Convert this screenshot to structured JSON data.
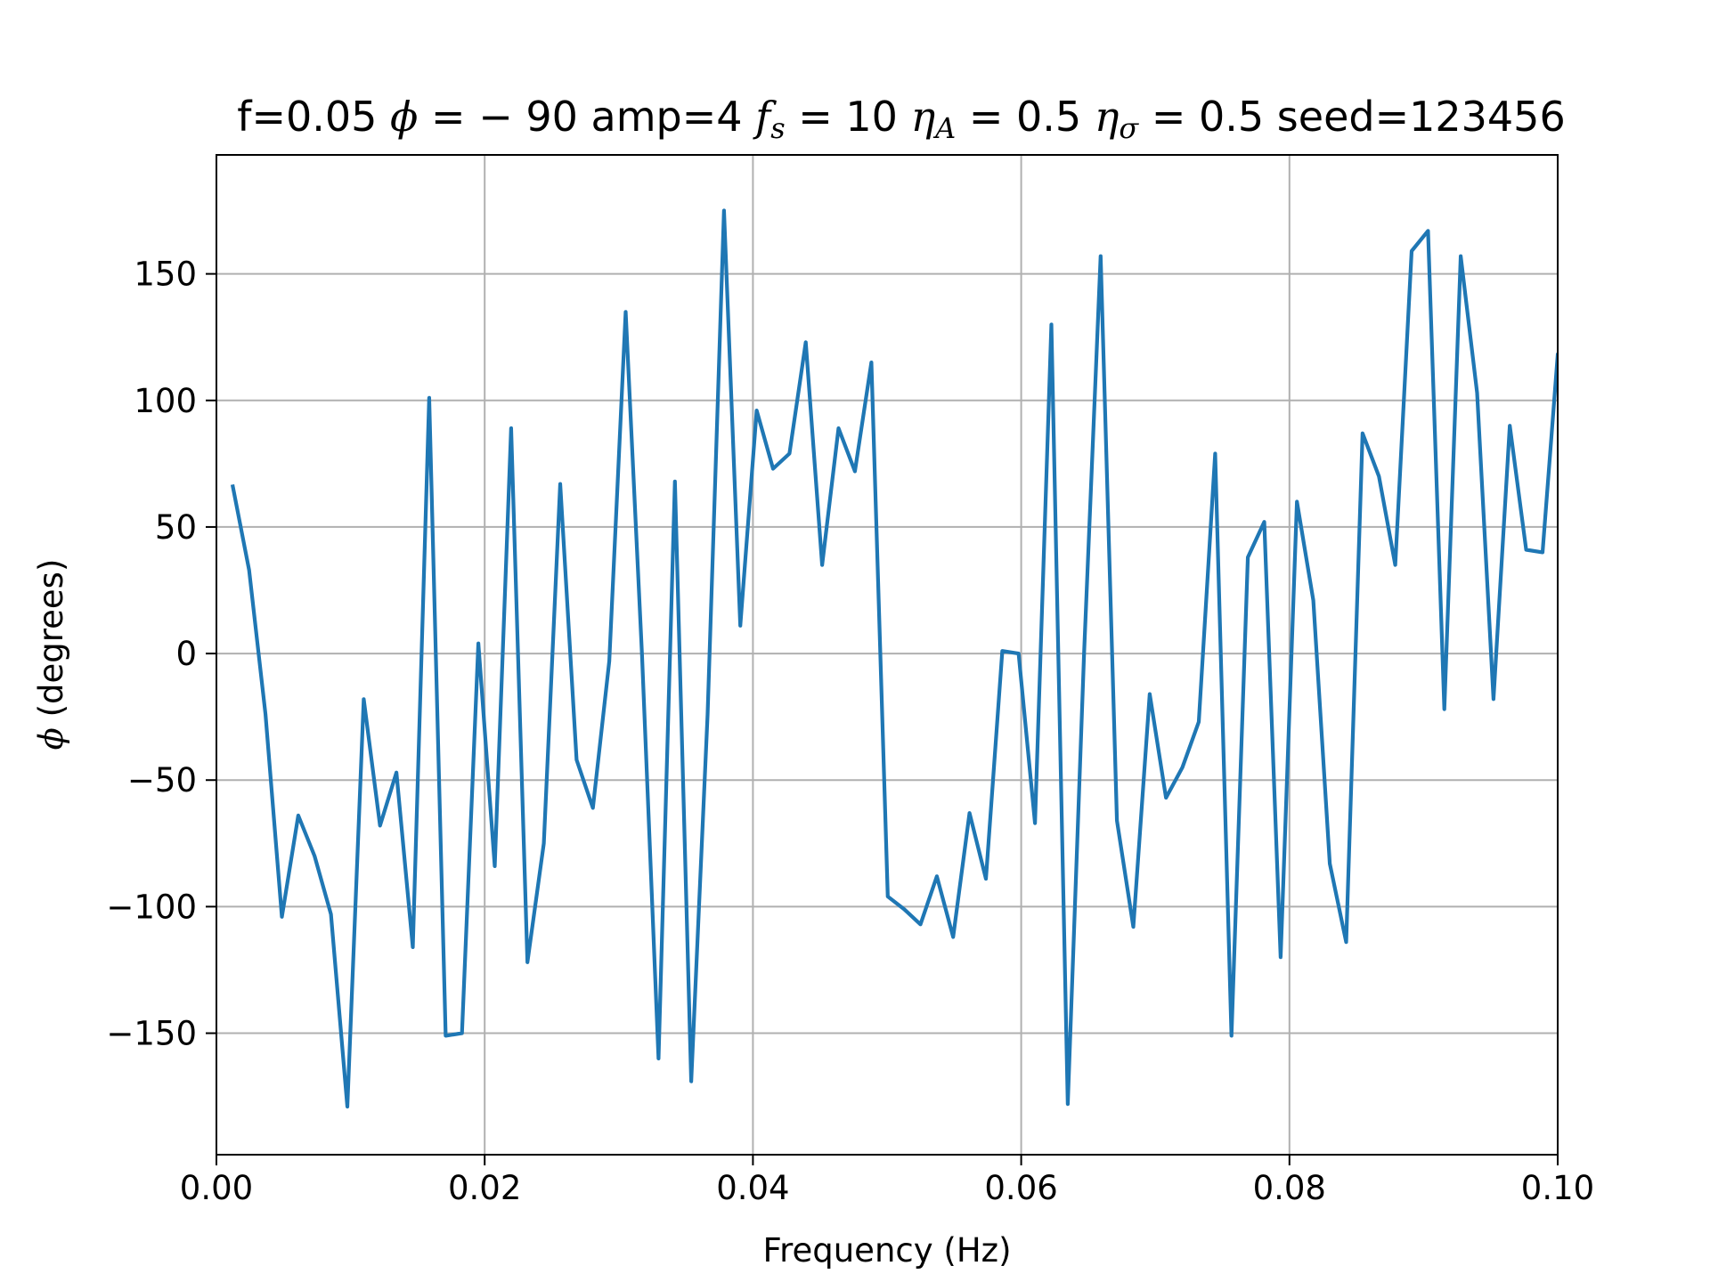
{
  "chart_data": {
    "type": "line",
    "title": {
      "prefix": "f=0.05 ",
      "phi_sym": "ϕ",
      "phi_val": " = − 90",
      "amp": " amp=4 ",
      "fs_f": "f",
      "fs_sub": "s",
      "fs_val": " = 10 ",
      "etaA_sym": "η",
      "etaA_sub": "A",
      "etaA_val": " = 0.5 ",
      "etas_sym": "η",
      "etas_sub": "σ",
      "etas_val": " = 0.5",
      "seed": " seed=123456"
    },
    "xlabel": "Frequency (Hz)",
    "ylabel_sym": "ϕ",
    "ylabel_rest": " (degrees)",
    "xlim": [
      0.0,
      0.1
    ],
    "ylim": [
      -198,
      197
    ],
    "xticks": [
      0.0,
      0.02,
      0.04,
      0.06,
      0.08,
      0.1
    ],
    "xtick_labels": [
      "0.00",
      "0.02",
      "0.04",
      "0.06",
      "0.08",
      "0.10"
    ],
    "yticks": [
      -150,
      -100,
      -50,
      0,
      50,
      100,
      150
    ],
    "ytick_labels": [
      "−150",
      "−100",
      "−50",
      "0",
      "50",
      "100",
      "150"
    ],
    "grid": true,
    "series": [
      {
        "color": "#1f77b4",
        "x": [
          0.00122,
          0.00244,
          0.00366,
          0.00488,
          0.0061,
          0.00732,
          0.00854,
          0.00976,
          0.01098,
          0.0122,
          0.01342,
          0.01464,
          0.01586,
          0.01709,
          0.01831,
          0.01953,
          0.02075,
          0.02197,
          0.02319,
          0.02441,
          0.02563,
          0.02685,
          0.02807,
          0.02929,
          0.03051,
          0.03173,
          0.03296,
          0.03418,
          0.0354,
          0.03662,
          0.03784,
          0.03906,
          0.04028,
          0.0415,
          0.04272,
          0.04394,
          0.04516,
          0.04638,
          0.0476,
          0.04883,
          0.05005,
          0.05127,
          0.05249,
          0.05371,
          0.05493,
          0.05615,
          0.05737,
          0.05859,
          0.05981,
          0.06103,
          0.06225,
          0.06347,
          0.06469,
          0.06592,
          0.06714,
          0.06836,
          0.06958,
          0.0708,
          0.07202,
          0.07324,
          0.07446,
          0.07568,
          0.0769,
          0.07812,
          0.07934,
          0.08056,
          0.08178,
          0.08301,
          0.08423,
          0.08545,
          0.08667,
          0.08789,
          0.08911,
          0.09033,
          0.09155,
          0.09277,
          0.09399,
          0.09521,
          0.09643,
          0.09765,
          0.09887,
          0.1
        ],
        "y": [
          66,
          33,
          -24,
          -104,
          -64,
          -80,
          -103,
          -179,
          -18,
          -68,
          -47,
          -116,
          101,
          -151,
          -150,
          4,
          -84,
          89,
          -122,
          -75,
          67,
          -42,
          -61,
          -3,
          135,
          -1,
          -160,
          68,
          -169,
          -24,
          175,
          11,
          96,
          73,
          79,
          123,
          35,
          89,
          72,
          115,
          -96,
          -101,
          -107,
          -88,
          -112,
          -63,
          -89,
          1,
          0,
          -67,
          130,
          -178,
          0,
          157,
          -66,
          -108,
          -16,
          -57,
          -45,
          -27,
          79,
          -151,
          38,
          52,
          -120,
          60,
          21,
          -83,
          -114,
          87,
          70,
          35,
          159,
          167,
          -22,
          157,
          103,
          -18,
          90,
          41,
          40,
          118
        ]
      }
    ]
  }
}
